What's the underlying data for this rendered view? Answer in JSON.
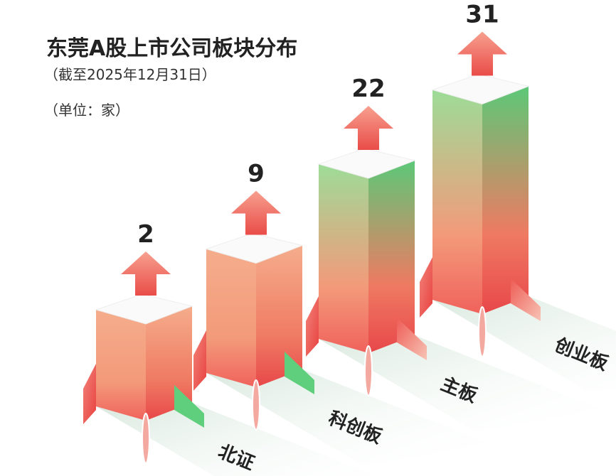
{
  "chart_data": {
    "type": "bar",
    "title": "东莞A股上市公司板块分布",
    "subtitle": "（截至2025年12月31日）",
    "unit": "（单位：家）",
    "categories": [
      "北证",
      "科创板",
      "主板",
      "创业板"
    ],
    "values": [
      2,
      9,
      22,
      31
    ]
  }
}
